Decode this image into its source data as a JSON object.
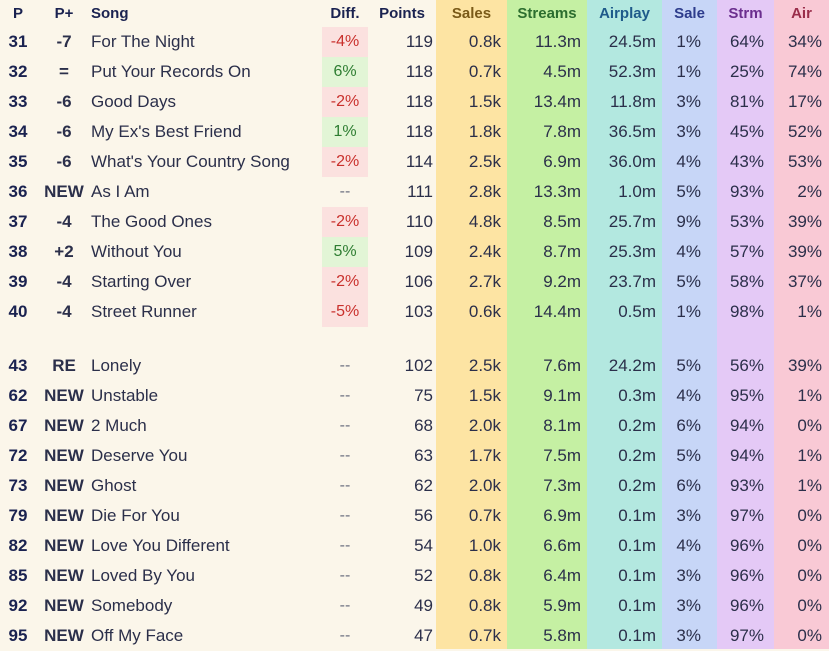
{
  "headers": {
    "pos": "P",
    "move": "P+",
    "song": "Song",
    "diff": "Diff.",
    "points": "Points",
    "sales": "Sales",
    "streams": "Streams",
    "airplay": "Airplay",
    "sale_pct": "Sale",
    "strm_pct": "Strm",
    "air_pct": "Air"
  },
  "colors": {
    "background": "#fbf6ea",
    "sales_column": "#fde4a3",
    "streams_column": "#c5f0a3",
    "airplay_column": "#b3e8e0",
    "sale_pct_column": "#c7d6f7",
    "strm_pct_column": "#e4c9f6",
    "air_pct_column": "#f9c9d5",
    "diff_negative": "#fbe1df",
    "diff_positive": "#e2f5d6",
    "move_down": "#c9302c",
    "move_up": "#2e7d32",
    "move_new": "#7b55d0",
    "move_re": "#2a78b6"
  },
  "rows": [
    {
      "pos": "31",
      "move": "-7",
      "move_type": "down",
      "song": "For The Night",
      "diff": "-4%",
      "diff_type": "neg",
      "points": "119",
      "sales": "0.8k",
      "streams": "11.3m",
      "airplay": "24.5m",
      "sale_pct": "1%",
      "strm_pct": "64%",
      "air_pct": "34%"
    },
    {
      "pos": "32",
      "move": "=",
      "move_type": "same",
      "song": "Put Your Records On",
      "diff": "6%",
      "diff_type": "pos",
      "points": "118",
      "sales": "0.7k",
      "streams": "4.5m",
      "airplay": "52.3m",
      "sale_pct": "1%",
      "strm_pct": "25%",
      "air_pct": "74%"
    },
    {
      "pos": "33",
      "move": "-6",
      "move_type": "down",
      "song": "Good Days",
      "diff": "-2%",
      "diff_type": "neg",
      "points": "118",
      "sales": "1.5k",
      "streams": "13.4m",
      "airplay": "11.8m",
      "sale_pct": "3%",
      "strm_pct": "81%",
      "air_pct": "17%"
    },
    {
      "pos": "34",
      "move": "-6",
      "move_type": "down",
      "song": "My Ex's Best Friend",
      "diff": "1%",
      "diff_type": "pos",
      "points": "118",
      "sales": "1.8k",
      "streams": "7.8m",
      "airplay": "36.5m",
      "sale_pct": "3%",
      "strm_pct": "45%",
      "air_pct": "52%"
    },
    {
      "pos": "35",
      "move": "-6",
      "move_type": "down",
      "song": "What's Your Country Song",
      "diff": "-2%",
      "diff_type": "neg",
      "points": "114",
      "sales": "2.5k",
      "streams": "6.9m",
      "airplay": "36.0m",
      "sale_pct": "4%",
      "strm_pct": "43%",
      "air_pct": "53%"
    },
    {
      "pos": "36",
      "move": "NEW",
      "move_type": "new",
      "song": "As I Am",
      "diff": "--",
      "diff_type": "none",
      "points": "111",
      "sales": "2.8k",
      "streams": "13.3m",
      "airplay": "1.0m",
      "sale_pct": "5%",
      "strm_pct": "93%",
      "air_pct": "2%"
    },
    {
      "pos": "37",
      "move": "-4",
      "move_type": "down",
      "song": "The Good Ones",
      "diff": "-2%",
      "diff_type": "neg",
      "points": "110",
      "sales": "4.8k",
      "streams": "8.5m",
      "airplay": "25.7m",
      "sale_pct": "9%",
      "strm_pct": "53%",
      "air_pct": "39%"
    },
    {
      "pos": "38",
      "move": "+2",
      "move_type": "up",
      "song": "Without You",
      "diff": "5%",
      "diff_type": "pos",
      "points": "109",
      "sales": "2.4k",
      "streams": "8.7m",
      "airplay": "25.3m",
      "sale_pct": "4%",
      "strm_pct": "57%",
      "air_pct": "39%"
    },
    {
      "pos": "39",
      "move": "-4",
      "move_type": "down",
      "song": "Starting Over",
      "diff": "-2%",
      "diff_type": "neg",
      "points": "106",
      "sales": "2.7k",
      "streams": "9.2m",
      "airplay": "23.7m",
      "sale_pct": "5%",
      "strm_pct": "58%",
      "air_pct": "37%"
    },
    {
      "pos": "40",
      "move": "-4",
      "move_type": "down",
      "song": "Street Runner",
      "diff": "-5%",
      "diff_type": "neg",
      "points": "103",
      "sales": "0.6k",
      "streams": "14.4m",
      "airplay": "0.5m",
      "sale_pct": "1%",
      "strm_pct": "98%",
      "air_pct": "1%"
    },
    {
      "pos": "43",
      "move": "RE",
      "move_type": "re",
      "song": "Lonely",
      "diff": "--",
      "diff_type": "none",
      "points": "102",
      "sales": "2.5k",
      "streams": "7.6m",
      "airplay": "24.2m",
      "sale_pct": "5%",
      "strm_pct": "56%",
      "air_pct": "39%"
    },
    {
      "pos": "62",
      "move": "NEW",
      "move_type": "new",
      "song": "Unstable",
      "diff": "--",
      "diff_type": "none",
      "points": "75",
      "sales": "1.5k",
      "streams": "9.1m",
      "airplay": "0.3m",
      "sale_pct": "4%",
      "strm_pct": "95%",
      "air_pct": "1%"
    },
    {
      "pos": "67",
      "move": "NEW",
      "move_type": "new",
      "song": "2 Much",
      "diff": "--",
      "diff_type": "none",
      "points": "68",
      "sales": "2.0k",
      "streams": "8.1m",
      "airplay": "0.2m",
      "sale_pct": "6%",
      "strm_pct": "94%",
      "air_pct": "0%"
    },
    {
      "pos": "72",
      "move": "NEW",
      "move_type": "new",
      "song": "Deserve You",
      "diff": "--",
      "diff_type": "none",
      "points": "63",
      "sales": "1.7k",
      "streams": "7.5m",
      "airplay": "0.2m",
      "sale_pct": "5%",
      "strm_pct": "94%",
      "air_pct": "1%"
    },
    {
      "pos": "73",
      "move": "NEW",
      "move_type": "new",
      "song": "Ghost",
      "diff": "--",
      "diff_type": "none",
      "points": "62",
      "sales": "2.0k",
      "streams": "7.3m",
      "airplay": "0.2m",
      "sale_pct": "6%",
      "strm_pct": "93%",
      "air_pct": "1%"
    },
    {
      "pos": "79",
      "move": "NEW",
      "move_type": "new",
      "song": "Die For You",
      "diff": "--",
      "diff_type": "none",
      "points": "56",
      "sales": "0.7k",
      "streams": "6.9m",
      "airplay": "0.1m",
      "sale_pct": "3%",
      "strm_pct": "97%",
      "air_pct": "0%"
    },
    {
      "pos": "82",
      "move": "NEW",
      "move_type": "new",
      "song": "Love You Different",
      "diff": "--",
      "diff_type": "none",
      "points": "54",
      "sales": "1.0k",
      "streams": "6.6m",
      "airplay": "0.1m",
      "sale_pct": "4%",
      "strm_pct": "96%",
      "air_pct": "0%"
    },
    {
      "pos": "85",
      "move": "NEW",
      "move_type": "new",
      "song": "Loved By You",
      "diff": "--",
      "diff_type": "none",
      "points": "52",
      "sales": "0.8k",
      "streams": "6.4m",
      "airplay": "0.1m",
      "sale_pct": "3%",
      "strm_pct": "96%",
      "air_pct": "0%"
    },
    {
      "pos": "92",
      "move": "NEW",
      "move_type": "new",
      "song": "Somebody",
      "diff": "--",
      "diff_type": "none",
      "points": "49",
      "sales": "0.8k",
      "streams": "5.9m",
      "airplay": "0.1m",
      "sale_pct": "3%",
      "strm_pct": "96%",
      "air_pct": "0%"
    },
    {
      "pos": "95",
      "move": "NEW",
      "move_type": "new",
      "song": "Off My Face",
      "diff": "--",
      "diff_type": "none",
      "points": "47",
      "sales": "0.7k",
      "streams": "5.8m",
      "airplay": "0.1m",
      "sale_pct": "3%",
      "strm_pct": "97%",
      "air_pct": "0%"
    }
  ]
}
